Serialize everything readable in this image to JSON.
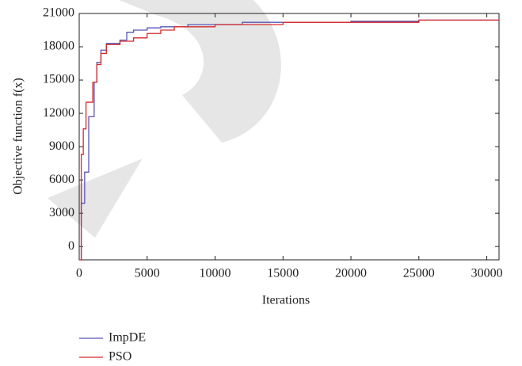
{
  "chart_data": {
    "type": "line",
    "step": true,
    "x_label": "Iterations",
    "y_label": "Objective function f(x)",
    "xlim": [
      0,
      30900
    ],
    "xticks": [
      0,
      5000,
      10000,
      15000,
      20000,
      25000,
      30000
    ],
    "ylim": [
      -1200,
      21000
    ],
    "yticks": [
      0,
      3000,
      6000,
      9000,
      12000,
      15000,
      18000,
      21000
    ],
    "legend": "bottom-left-outside",
    "series": [
      {
        "name": "ImpDE",
        "color": "#5a55b5",
        "x": [
          0,
          150,
          400,
          700,
          1100,
          1300,
          1600,
          2000,
          3000,
          3500,
          4000,
          5000,
          6000,
          8000,
          12000,
          20000,
          25000,
          30900
        ],
        "values": [
          -1200,
          3900,
          6700,
          11700,
          14800,
          16600,
          17700,
          18300,
          18600,
          19300,
          19500,
          19700,
          19800,
          20000,
          20200,
          20300,
          20400,
          20500
        ]
      },
      {
        "name": "PSO",
        "color": "#d62a2a",
        "x": [
          0,
          150,
          300,
          500,
          1000,
          1300,
          1600,
          2000,
          3000,
          4000,
          5000,
          6000,
          7000,
          10000,
          15000,
          25000,
          30900
        ],
        "values": [
          -1200,
          8300,
          10600,
          13000,
          14800,
          16400,
          17400,
          18200,
          18500,
          18800,
          19200,
          19500,
          19800,
          20000,
          20200,
          20400,
          20400
        ]
      }
    ]
  }
}
